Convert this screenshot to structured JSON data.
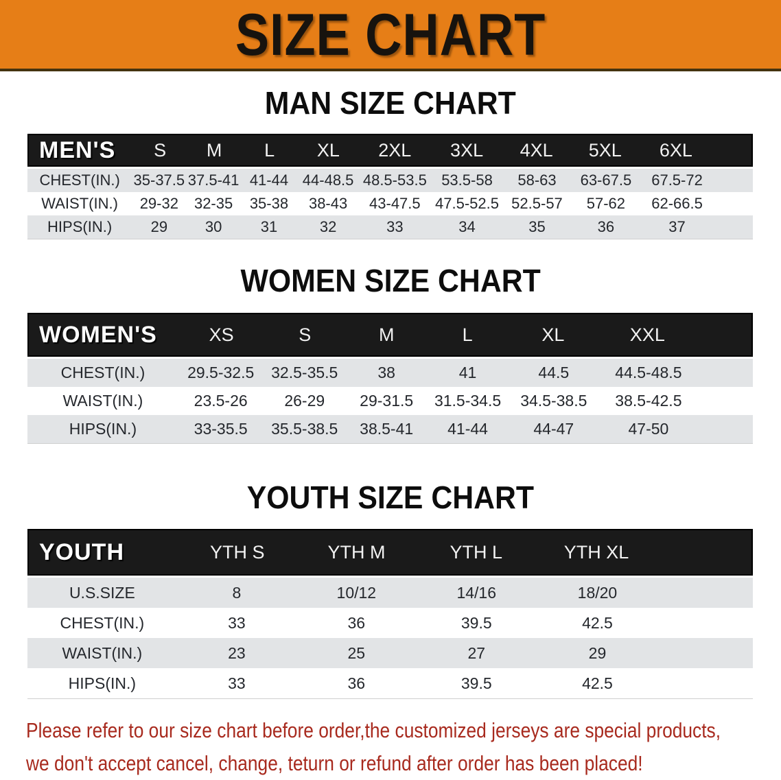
{
  "banner": {
    "title": "SIZE CHART"
  },
  "colors": {
    "banner_bg": "#E67E17",
    "header_bar_bg": "#1a1a1a",
    "row_gray": "#E2E4E6",
    "footer_red": "#A82A1E"
  },
  "men": {
    "heading": "MAN SIZE CHART",
    "label": "MEN'S",
    "sizes": [
      "S",
      "M",
      "L",
      "XL",
      "2XL",
      "3XL",
      "4XL",
      "5XL",
      "6XL"
    ],
    "rows": [
      {
        "label": "CHEST(IN.)",
        "values": [
          "35-37.5",
          "37.5-41",
          "41-44",
          "44-48.5",
          "48.5-53.5",
          "53.5-58",
          "58-63",
          "63-67.5",
          "67.5-72"
        ]
      },
      {
        "label": "WAIST(IN.)",
        "values": [
          "29-32",
          "32-35",
          "35-38",
          "38-43",
          "43-47.5",
          "47.5-52.5",
          "52.5-57",
          "57-62",
          "62-66.5"
        ]
      },
      {
        "label": "HIPS(IN.)",
        "values": [
          "29",
          "30",
          "31",
          "32",
          "33",
          "34",
          "35",
          "36",
          "37"
        ]
      }
    ]
  },
  "women": {
    "heading": "WOMEN SIZE CHART",
    "label": "WOMEN'S",
    "sizes": [
      "XS",
      "S",
      "M",
      "L",
      "XL",
      "XXL"
    ],
    "rows": [
      {
        "label": "CHEST(IN.)",
        "values": [
          "29.5-32.5",
          "32.5-35.5",
          "38",
          "41",
          "44.5",
          "44.5-48.5"
        ]
      },
      {
        "label": "WAIST(IN.)",
        "values": [
          "23.5-26",
          "26-29",
          "29-31.5",
          "31.5-34.5",
          "34.5-38.5",
          "38.5-42.5"
        ]
      },
      {
        "label": "HIPS(IN.)",
        "values": [
          "33-35.5",
          "35.5-38.5",
          "38.5-41",
          "41-44",
          "44-47",
          "47-50"
        ]
      }
    ]
  },
  "youth": {
    "heading": "YOUTH SIZE CHART",
    "label": "YOUTH",
    "sizes": [
      "YTH S",
      "YTH M",
      "YTH L",
      "YTH XL"
    ],
    "rows": [
      {
        "label": "U.S.SIZE",
        "values": [
          "8",
          "10/12",
          "14/16",
          "18/20"
        ]
      },
      {
        "label": "CHEST(IN.)",
        "values": [
          "33",
          "36",
          "39.5",
          "42.5"
        ]
      },
      {
        "label": "WAIST(IN.)",
        "values": [
          "23",
          "25",
          "27",
          "29"
        ]
      },
      {
        "label": "HIPS(IN.)",
        "values": [
          "33",
          "36",
          "39.5",
          "42.5"
        ]
      }
    ]
  },
  "footer": {
    "line1": "Please refer to our size chart before order,the customized jerseys are special products,",
    "line2": "we don't accept cancel, change, teturn or refund after order has been placed!"
  }
}
